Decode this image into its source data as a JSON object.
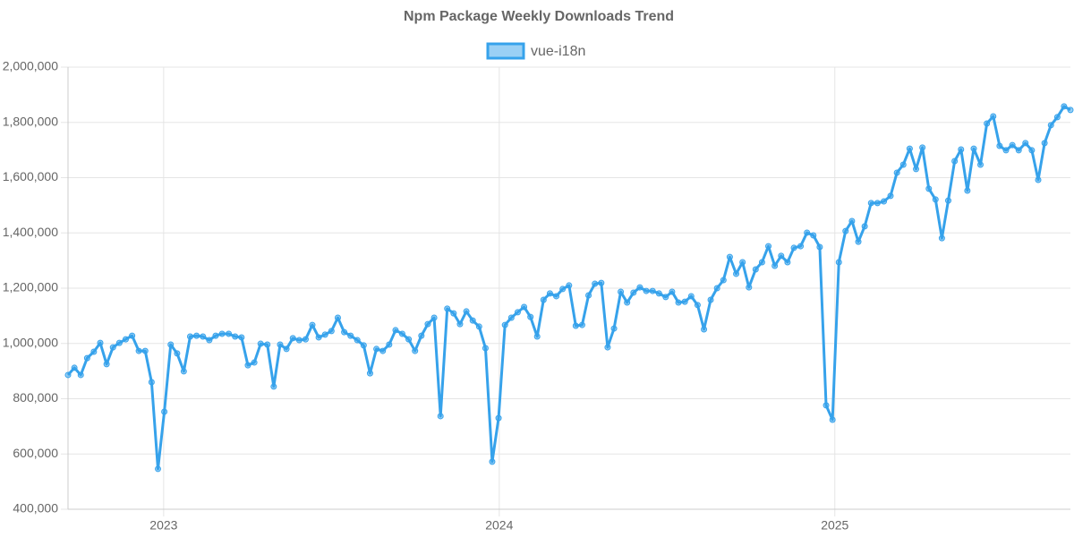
{
  "chart_data": {
    "type": "line",
    "title": "Npm Package Weekly Downloads Trend",
    "x": [
      2022.715,
      2022.734,
      2022.753,
      2022.772,
      2022.792,
      2022.811,
      2022.83,
      2022.849,
      2022.868,
      2022.887,
      2022.906,
      2022.926,
      2022.945,
      2022.964,
      2022.983,
      2023.002,
      2023.021,
      2023.04,
      2023.06,
      2023.079,
      2023.098,
      2023.117,
      2023.136,
      2023.155,
      2023.174,
      2023.194,
      2023.213,
      2023.232,
      2023.251,
      2023.27,
      2023.289,
      2023.309,
      2023.328,
      2023.347,
      2023.366,
      2023.385,
      2023.404,
      2023.423,
      2023.443,
      2023.462,
      2023.481,
      2023.5,
      2023.519,
      2023.538,
      2023.557,
      2023.577,
      2023.596,
      2023.615,
      2023.634,
      2023.653,
      2023.672,
      2023.691,
      2023.711,
      2023.73,
      2023.749,
      2023.768,
      2023.787,
      2023.806,
      2023.825,
      2023.845,
      2023.864,
      2023.883,
      2023.902,
      2023.921,
      2023.94,
      2023.959,
      2023.979,
      2023.998,
      2024.017,
      2024.036,
      2024.055,
      2024.074,
      2024.093,
      2024.113,
      2024.132,
      2024.151,
      2024.17,
      2024.189,
      2024.208,
      2024.228,
      2024.247,
      2024.266,
      2024.285,
      2024.304,
      2024.323,
      2024.342,
      2024.362,
      2024.381,
      2024.4,
      2024.419,
      2024.438,
      2024.457,
      2024.476,
      2024.496,
      2024.515,
      2024.534,
      2024.553,
      2024.572,
      2024.591,
      2024.61,
      2024.63,
      2024.649,
      2024.668,
      2024.687,
      2024.706,
      2024.725,
      2024.744,
      2024.764,
      2024.783,
      2024.802,
      2024.821,
      2024.84,
      2024.859,
      2024.878,
      2024.898,
      2024.917,
      2024.936,
      2024.955,
      2024.974,
      2024.993,
      2025.012,
      2025.032,
      2025.051,
      2025.07,
      2025.089,
      2025.108,
      2025.127,
      2025.146,
      2025.166,
      2025.185,
      2025.204,
      2025.223,
      2025.242,
      2025.261,
      2025.28,
      2025.3,
      2025.319,
      2025.338,
      2025.357,
      2025.376,
      2025.395,
      2025.414,
      2025.434,
      2025.453,
      2025.472,
      2025.491,
      2025.51,
      2025.529,
      2025.548,
      2025.568,
      2025.587,
      2025.606,
      2025.625,
      2025.644,
      2025.663,
      2025.683,
      2025.702
    ],
    "series": [
      {
        "name": "vue-i18n",
        "color": "#36a2eb",
        "fill": "rgba(54,162,235,0.5)",
        "values": [
          886000,
          912000,
          886000,
          947000,
          970000,
          1002000,
          925000,
          986000,
          1002000,
          1015000,
          1028000,
          973000,
          973000,
          860000,
          546000,
          753000,
          996000,
          964000,
          899000,
          1025000,
          1028000,
          1025000,
          1012000,
          1028000,
          1035000,
          1035000,
          1025000,
          1022000,
          921000,
          931000,
          999000,
          996000,
          844000,
          996000,
          980000,
          1019000,
          1012000,
          1015000,
          1067000,
          1022000,
          1032000,
          1045000,
          1093000,
          1041000,
          1028000,
          1012000,
          993000,
          892000,
          980000,
          973000,
          996000,
          1048000,
          1035000,
          1015000,
          973000,
          1028000,
          1070000,
          1093000,
          737000,
          1126000,
          1109000,
          1070000,
          1116000,
          1083000,
          1061000,
          983000,
          572000,
          730000,
          1067000,
          1093000,
          1113000,
          1132000,
          1096000,
          1025000,
          1158000,
          1181000,
          1171000,
          1197000,
          1210000,
          1064000,
          1067000,
          1174000,
          1216000,
          1219000,
          986000,
          1054000,
          1187000,
          1148000,
          1184000,
          1203000,
          1190000,
          1190000,
          1181000,
          1168000,
          1187000,
          1148000,
          1151000,
          1171000,
          1139000,
          1051000,
          1158000,
          1200000,
          1229000,
          1313000,
          1252000,
          1294000,
          1203000,
          1268000,
          1294000,
          1352000,
          1281000,
          1317000,
          1294000,
          1346000,
          1352000,
          1401000,
          1391000,
          1349000,
          776000,
          724000,
          1294000,
          1407000,
          1443000,
          1368000,
          1424000,
          1508000,
          1508000,
          1514000,
          1534000,
          1618000,
          1647000,
          1705000,
          1631000,
          1709000,
          1560000,
          1521000,
          1381000,
          1517000,
          1660000,
          1702000,
          1553000,
          1705000,
          1647000,
          1796000,
          1822000,
          1715000,
          1699000,
          1718000,
          1699000,
          1725000,
          1699000,
          1592000,
          1725000,
          1790000,
          1819000,
          1858000,
          1845000
        ]
      }
    ],
    "xlim": [
      2022.715,
      2025.702
    ],
    "xticks": [
      2023,
      2024,
      2025
    ],
    "ylim": [
      400000,
      2000000
    ],
    "yticks": [
      {
        "value": 400000,
        "label": "400,000"
      },
      {
        "value": 600000,
        "label": "600,000"
      },
      {
        "value": 800000,
        "label": "800,000"
      },
      {
        "value": 1000000,
        "label": "1,000,000"
      },
      {
        "value": 1200000,
        "label": "1,200,000"
      },
      {
        "value": 1400000,
        "label": "1,400,000"
      },
      {
        "value": 1600000,
        "label": "1,600,000"
      },
      {
        "value": 1800000,
        "label": "1,800,000"
      },
      {
        "value": 2000000,
        "label": "2,000,000"
      }
    ],
    "grid": true,
    "legend": "top"
  }
}
